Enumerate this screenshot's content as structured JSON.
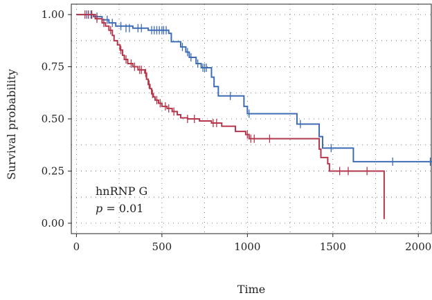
{
  "chart_data": {
    "type": "line",
    "subtype": "kaplan-meier",
    "xlabel": "Time",
    "ylabel": "Survival probability",
    "xlim": [
      -30,
      2080
    ],
    "ylim": [
      -0.05,
      1.05
    ],
    "x_ticks": [
      0,
      500,
      1000,
      1500,
      2000
    ],
    "y_ticks": [
      0.0,
      0.25,
      0.5,
      0.75,
      1.0
    ],
    "x_tick_labels": [
      "0",
      "500",
      "1000",
      "1500",
      "2000"
    ],
    "y_tick_labels": [
      "0.00",
      "0.25",
      "0.50",
      "0.75",
      "1.00"
    ],
    "grid": true,
    "grid_style": "dotted",
    "annotation": {
      "line1": "hnRNP G",
      "p_symbol": "p",
      "p_rest": " = 0.01"
    },
    "series": [
      {
        "color": "#3d6cb5",
        "steps": [
          [
            0,
            1.0
          ],
          [
            100,
            0.99
          ],
          [
            150,
            0.975
          ],
          [
            190,
            0.96
          ],
          [
            230,
            0.945
          ],
          [
            330,
            0.935
          ],
          [
            420,
            0.925
          ],
          [
            540,
            0.91
          ],
          [
            555,
            0.87
          ],
          [
            610,
            0.845
          ],
          [
            640,
            0.82
          ],
          [
            660,
            0.795
          ],
          [
            700,
            0.765
          ],
          [
            730,
            0.745
          ],
          [
            790,
            0.7
          ],
          [
            805,
            0.655
          ],
          [
            830,
            0.61
          ],
          [
            980,
            0.56
          ],
          [
            1000,
            0.525
          ],
          [
            1290,
            0.475
          ],
          [
            1420,
            0.415
          ],
          [
            1440,
            0.36
          ],
          [
            1620,
            0.295
          ],
          [
            2090,
            0.295
          ]
        ],
        "censors": [
          [
            60,
            1.0
          ],
          [
            70,
            1.0
          ],
          [
            85,
            1.0
          ],
          [
            120,
            0.99
          ],
          [
            180,
            0.975
          ],
          [
            210,
            0.96
          ],
          [
            260,
            0.945
          ],
          [
            290,
            0.935
          ],
          [
            310,
            0.935
          ],
          [
            360,
            0.935
          ],
          [
            380,
            0.935
          ],
          [
            440,
            0.925
          ],
          [
            455,
            0.925
          ],
          [
            470,
            0.925
          ],
          [
            485,
            0.925
          ],
          [
            500,
            0.925
          ],
          [
            510,
            0.925
          ],
          [
            525,
            0.925
          ],
          [
            620,
            0.845
          ],
          [
            650,
            0.82
          ],
          [
            670,
            0.795
          ],
          [
            710,
            0.765
          ],
          [
            740,
            0.745
          ],
          [
            750,
            0.745
          ],
          [
            760,
            0.745
          ],
          [
            900,
            0.61
          ],
          [
            1010,
            0.525
          ],
          [
            1310,
            0.475
          ],
          [
            1490,
            0.36
          ],
          [
            1850,
            0.295
          ],
          [
            2070,
            0.295
          ]
        ]
      },
      {
        "color": "#b5364b",
        "steps": [
          [
            0,
            1.0
          ],
          [
            110,
            0.98
          ],
          [
            150,
            0.96
          ],
          [
            170,
            0.945
          ],
          [
            190,
            0.925
          ],
          [
            210,
            0.9
          ],
          [
            220,
            0.875
          ],
          [
            240,
            0.855
          ],
          [
            255,
            0.83
          ],
          [
            270,
            0.805
          ],
          [
            280,
            0.785
          ],
          [
            300,
            0.765
          ],
          [
            330,
            0.75
          ],
          [
            360,
            0.735
          ],
          [
            400,
            0.72
          ],
          [
            410,
            0.69
          ],
          [
            420,
            0.665
          ],
          [
            430,
            0.645
          ],
          [
            440,
            0.62
          ],
          [
            450,
            0.605
          ],
          [
            460,
            0.59
          ],
          [
            480,
            0.575
          ],
          [
            500,
            0.56
          ],
          [
            530,
            0.55
          ],
          [
            560,
            0.535
          ],
          [
            590,
            0.52
          ],
          [
            610,
            0.505
          ],
          [
            650,
            0.5
          ],
          [
            720,
            0.49
          ],
          [
            790,
            0.48
          ],
          [
            850,
            0.465
          ],
          [
            930,
            0.44
          ],
          [
            990,
            0.425
          ],
          [
            1010,
            0.405
          ],
          [
            1420,
            0.355
          ],
          [
            1430,
            0.315
          ],
          [
            1470,
            0.285
          ],
          [
            1480,
            0.25
          ],
          [
            1800,
            0.02
          ]
        ],
        "censors": [
          [
            50,
            1.0
          ],
          [
            70,
            1.0
          ],
          [
            90,
            1.0
          ],
          [
            120,
            0.98
          ],
          [
            160,
            0.96
          ],
          [
            200,
            0.925
          ],
          [
            260,
            0.83
          ],
          [
            290,
            0.785
          ],
          [
            320,
            0.765
          ],
          [
            340,
            0.75
          ],
          [
            370,
            0.735
          ],
          [
            380,
            0.735
          ],
          [
            405,
            0.72
          ],
          [
            425,
            0.665
          ],
          [
            445,
            0.62
          ],
          [
            470,
            0.59
          ],
          [
            490,
            0.575
          ],
          [
            520,
            0.56
          ],
          [
            540,
            0.55
          ],
          [
            570,
            0.535
          ],
          [
            650,
            0.5
          ],
          [
            690,
            0.5
          ],
          [
            800,
            0.48
          ],
          [
            820,
            0.48
          ],
          [
            1000,
            0.425
          ],
          [
            1020,
            0.405
          ],
          [
            1040,
            0.405
          ],
          [
            1130,
            0.405
          ],
          [
            1540,
            0.25
          ],
          [
            1590,
            0.25
          ],
          [
            1700,
            0.25
          ]
        ]
      }
    ]
  }
}
